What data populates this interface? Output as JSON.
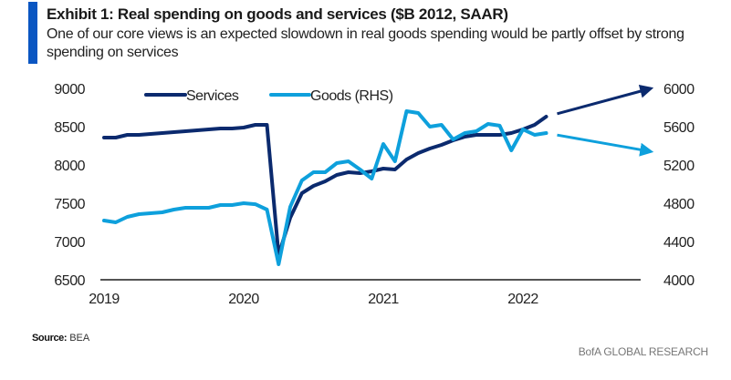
{
  "header": {
    "title": "Exhibit 1: Real spending on goods and services ($B 2012, SAAR)",
    "subtitle": "One of our core views is an expected slowdown in real goods spending would be partly offset by strong spending on services"
  },
  "footer": {
    "source_label": "Source:",
    "source_value": "BEA",
    "brand": "BofA GLOBAL RESEARCH"
  },
  "colors": {
    "accent": "#0a56c2",
    "services": "#0b2a6e",
    "goods": "#0ea0dc",
    "axis": "#1a1a1a"
  },
  "chart_data": {
    "type": "line",
    "title": "Exhibit 1: Real spending on goods and services ($B 2012, SAAR)",
    "xlabel": "",
    "ylabel": "",
    "y2label": "",
    "x_ticks": [
      "2019",
      "2020",
      "2021",
      "2022"
    ],
    "x_range": [
      "2019-01",
      "2022-12"
    ],
    "y_left": {
      "ticks": [
        9000,
        8500,
        8000,
        7500,
        7000,
        6500
      ],
      "range": [
        6500,
        9000
      ]
    },
    "y_right": {
      "ticks": [
        6000,
        5600,
        5200,
        4800,
        4400,
        4000
      ],
      "range": [
        4000,
        6000
      ]
    },
    "legend": {
      "position": "top-left",
      "entries": [
        "Services",
        "Goods (RHS)"
      ]
    },
    "grid": false,
    "x": [
      "2019-01",
      "2019-02",
      "2019-03",
      "2019-04",
      "2019-05",
      "2019-06",
      "2019-07",
      "2019-08",
      "2019-09",
      "2019-10",
      "2019-11",
      "2019-12",
      "2020-01",
      "2020-02",
      "2020-03",
      "2020-04",
      "2020-05",
      "2020-06",
      "2020-07",
      "2020-08",
      "2020-09",
      "2020-10",
      "2020-11",
      "2020-12",
      "2021-01",
      "2021-02",
      "2021-03",
      "2021-04",
      "2021-05",
      "2021-06",
      "2021-07",
      "2021-08",
      "2021-09",
      "2021-10",
      "2021-11",
      "2021-12",
      "2022-01",
      "2022-02",
      "2022-03"
    ],
    "series": [
      {
        "name": "Services",
        "axis": "left",
        "values": [
          8357,
          8357,
          8393,
          8393,
          8405,
          8417,
          8429,
          8440,
          8452,
          8464,
          8476,
          8476,
          8488,
          8524,
          8524,
          6821,
          7310,
          7631,
          7726,
          7786,
          7869,
          7905,
          7893,
          7917,
          7952,
          7940,
          8071,
          8155,
          8214,
          8262,
          8321,
          8369,
          8393,
          8393,
          8393,
          8417,
          8464,
          8524,
          8631
        ],
        "projection": {
          "direction": "up",
          "to_date": "2022-12",
          "to_value": 9000
        }
      },
      {
        "name": "Goods (RHS)",
        "axis": "right",
        "values": [
          4619,
          4600,
          4657,
          4686,
          4695,
          4705,
          4733,
          4752,
          4752,
          4752,
          4781,
          4781,
          4800,
          4790,
          4733,
          4162,
          4762,
          5038,
          5124,
          5124,
          5219,
          5238,
          5152,
          5057,
          5419,
          5238,
          5762,
          5743,
          5600,
          5619,
          5467,
          5533,
          5552,
          5629,
          5610,
          5352,
          5571,
          5514,
          5533
        ],
        "projection": {
          "direction": "down",
          "to_date": "2022-12",
          "to_value": 5340
        }
      }
    ]
  }
}
